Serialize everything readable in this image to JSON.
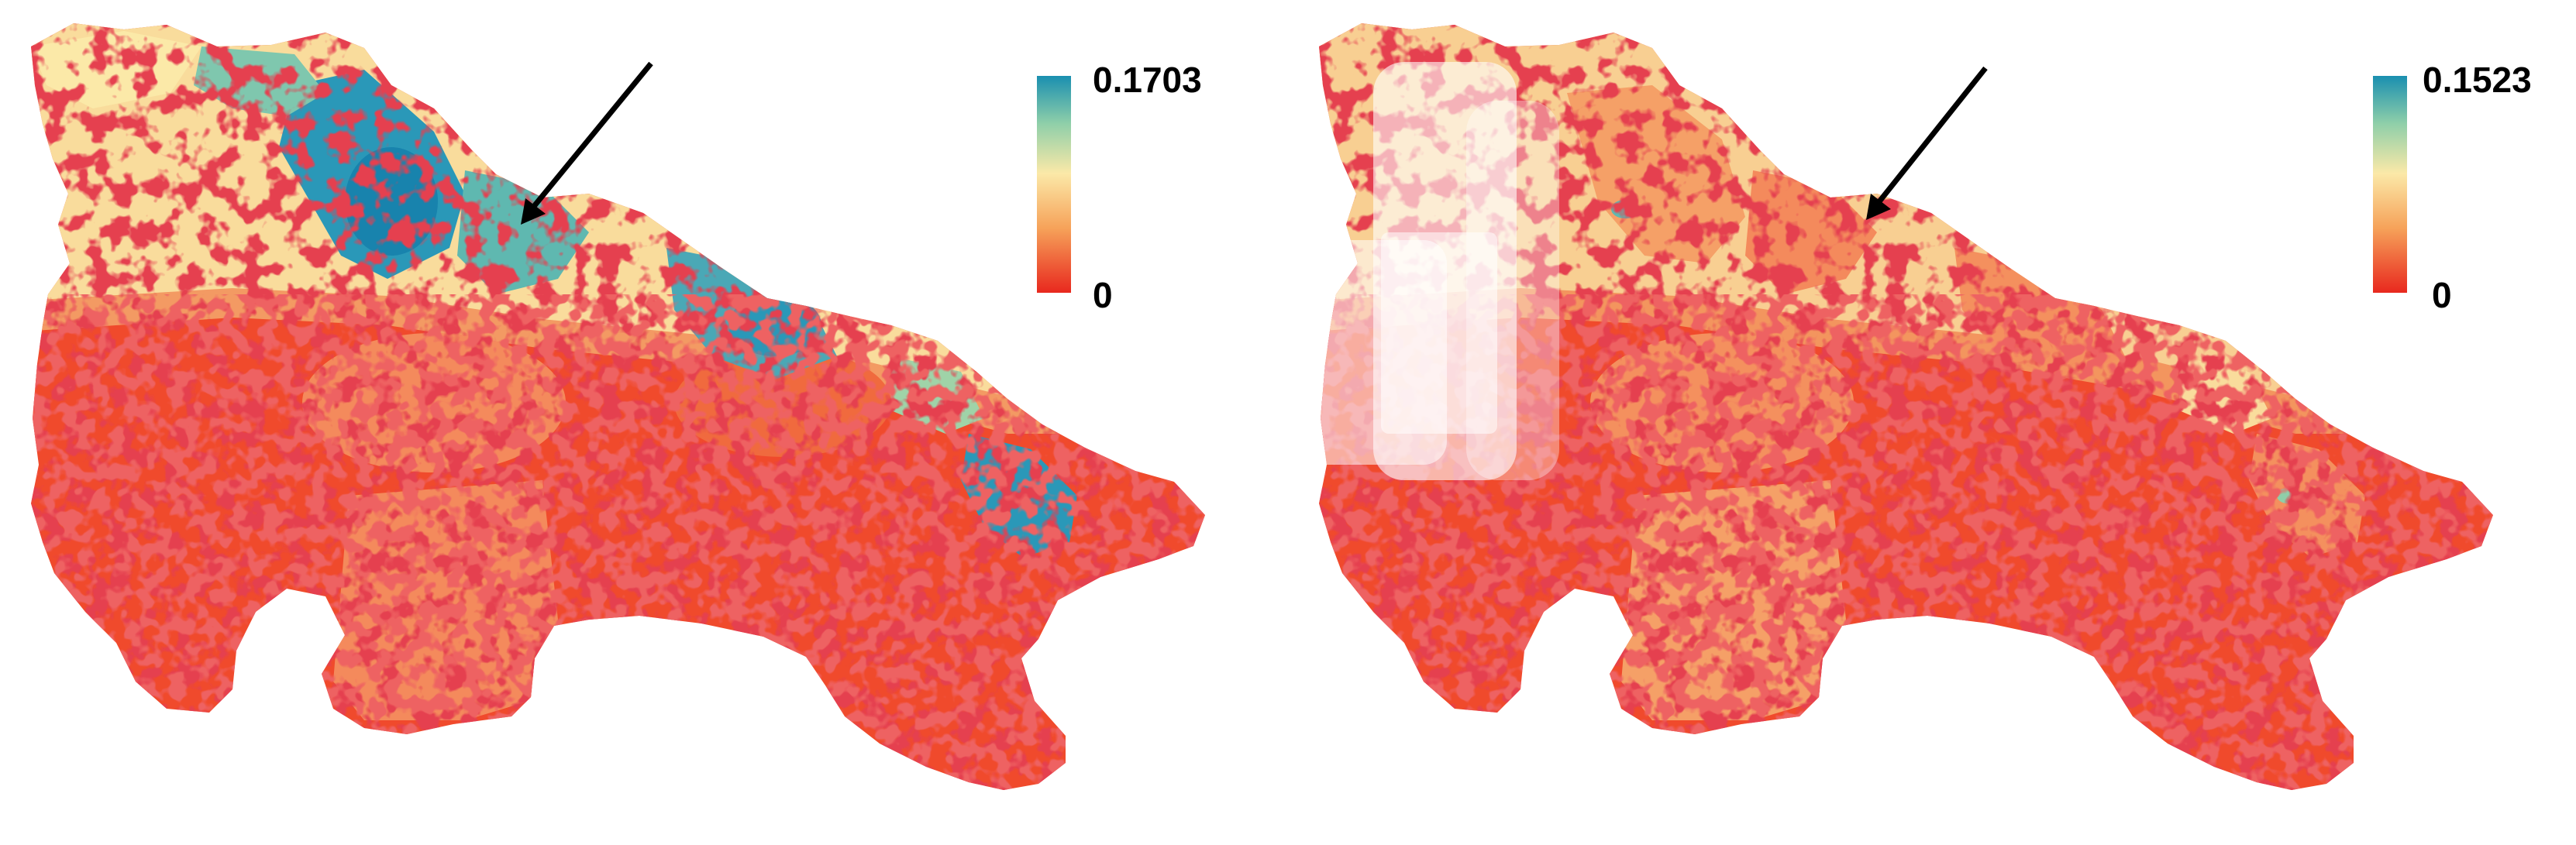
{
  "panels": [
    {
      "colorbar": {
        "max_label": "0.1703",
        "min_label": "0",
        "colors": [
          "#e8281e",
          "#fbe9a8",
          "#1a8fb0"
        ]
      }
    },
    {
      "colorbar": {
        "max_label": "0.1523",
        "min_label": "0",
        "colors": [
          "#e8281e",
          "#fbe9a8",
          "#1a8fb0"
        ]
      }
    }
  ]
}
